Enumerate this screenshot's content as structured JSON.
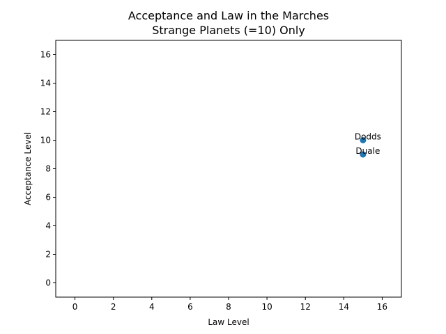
{
  "chart_data": {
    "type": "scatter",
    "title": "Acceptance and Law in the Marches",
    "subtitle": "Strange Planets (=10) Only",
    "xlabel": "Law Level",
    "ylabel": "Acceptance Level",
    "xlim": [
      -1,
      17
    ],
    "ylim": [
      -1,
      17
    ],
    "xticks": [
      0,
      2,
      4,
      6,
      8,
      10,
      12,
      14,
      16
    ],
    "yticks": [
      0,
      2,
      4,
      6,
      8,
      10,
      12,
      14,
      16
    ],
    "grid": false,
    "marker_color": "#1f77b4",
    "points": [
      {
        "label": "Dodds",
        "x": 15,
        "y": 10
      },
      {
        "label": "Duale",
        "x": 15,
        "y": 9
      }
    ]
  }
}
